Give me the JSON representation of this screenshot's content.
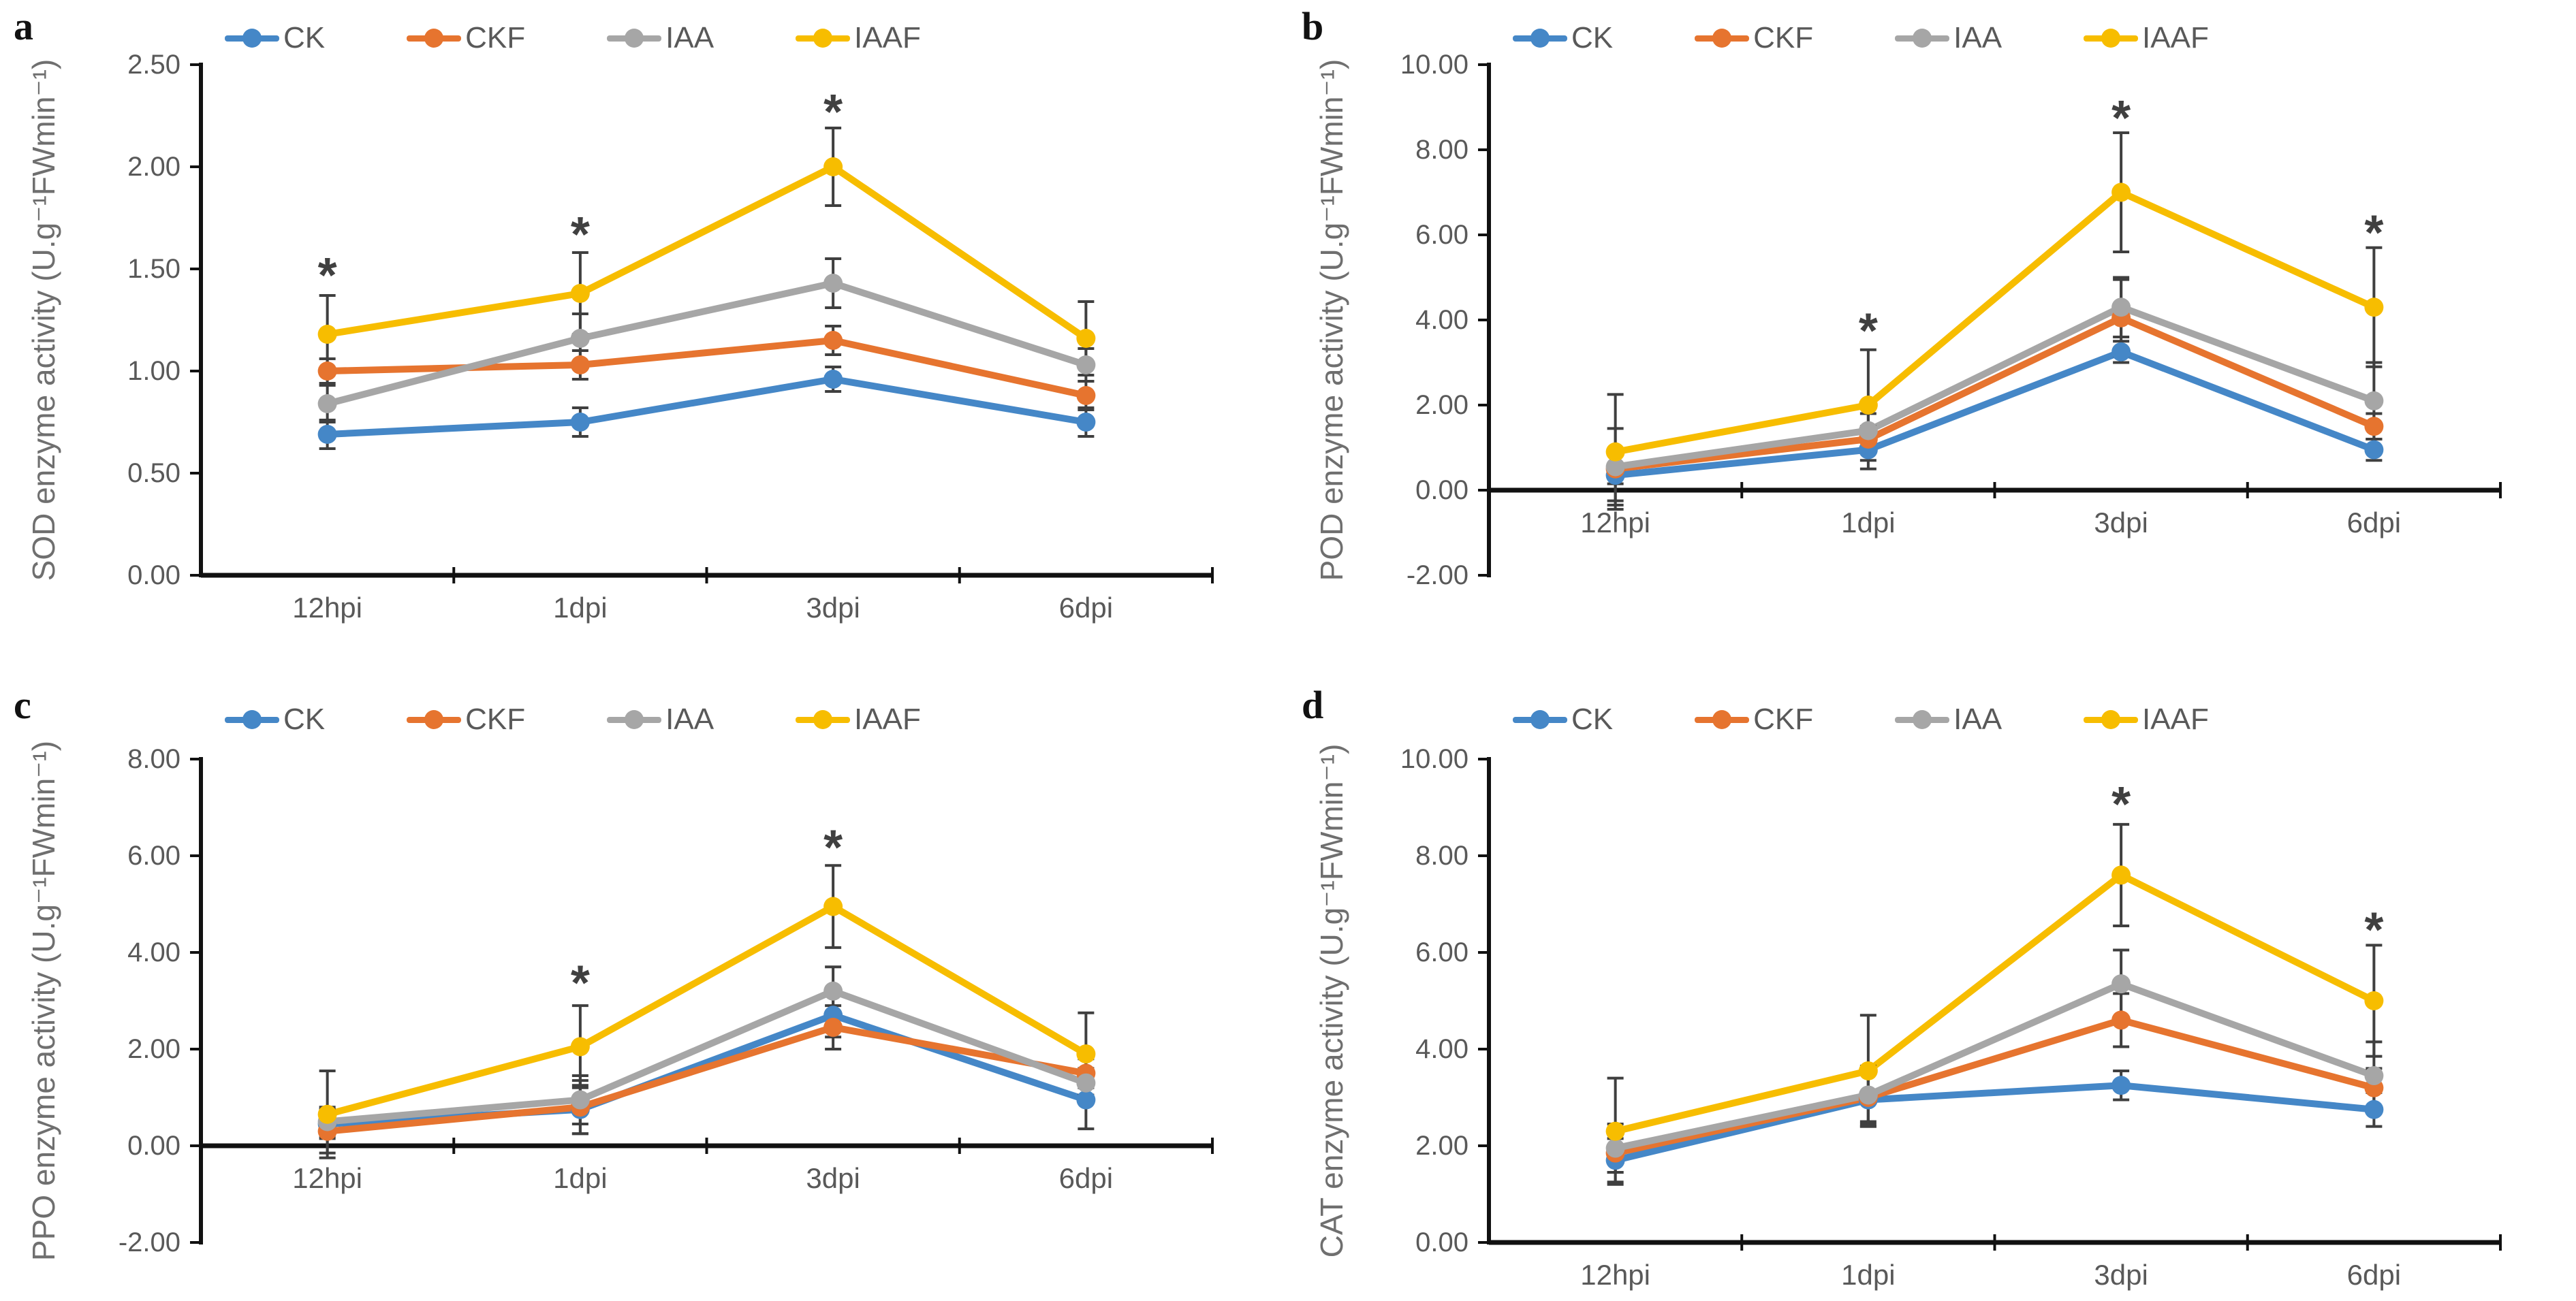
{
  "colors": {
    "background": "#ffffff",
    "axis": "#111111",
    "tick_text": "#595959",
    "axis_title_text": "#6f6f6f",
    "error_bar": "#3f3f3f",
    "asterisk": "#404040",
    "panel_letter": "#111111",
    "ck_blue": "#4587C7",
    "ckf_orange": "#E6742F",
    "iaa_gray": "#A6A6A6",
    "iaaf_yellow": "#F7BD00"
  },
  "chart_data": [
    {
      "type": "line",
      "letter": "a",
      "ylabel": "SOD enzyme activity",
      "unit": "(U.g⁻¹FWmin⁻¹)",
      "xlabel": "",
      "ylim": [
        0,
        2.5
      ],
      "ystep": 0.5,
      "tick_decimals": 2,
      "grid": false,
      "legend_position": "top",
      "categories": [
        "12hpi",
        "1dpi",
        "3dpi",
        "6dpi"
      ],
      "series": [
        {
          "name": "CK",
          "color": "#4587C7",
          "values": [
            0.69,
            0.75,
            0.96,
            0.75
          ],
          "errors": [
            0.07,
            0.07,
            0.06,
            0.07
          ]
        },
        {
          "name": "CKF",
          "color": "#E6742F",
          "values": [
            1.0,
            1.03,
            1.15,
            0.88
          ],
          "errors": [
            0.06,
            0.07,
            0.07,
            0.07
          ]
        },
        {
          "name": "IAA",
          "color": "#A6A6A6",
          "values": [
            0.84,
            1.16,
            1.43,
            1.03
          ],
          "errors": [
            0.09,
            0.12,
            0.12,
            0.08
          ]
        },
        {
          "name": "IAAF",
          "color": "#F7BD00",
          "values": [
            1.18,
            1.38,
            2.0,
            1.16
          ],
          "errors": [
            0.19,
            0.2,
            0.19,
            0.18
          ]
        }
      ],
      "significance": [
        {
          "x": 0,
          "y": 1.5,
          "text": "*"
        },
        {
          "x": 1,
          "y": 1.7,
          "text": "*"
        },
        {
          "x": 2,
          "y": 2.3,
          "text": "*"
        }
      ]
    },
    {
      "type": "line",
      "letter": "b",
      "ylabel": "POD enzyme activity",
      "unit": "(U.g⁻¹FWmin⁻¹)",
      "xlabel": "",
      "ylim": [
        -2,
        10
      ],
      "ystep": 2,
      "tick_decimals": 2,
      "grid": false,
      "legend_position": "top",
      "categories": [
        "12hpi",
        "1dpi",
        "3dpi",
        "6dpi"
      ],
      "series": [
        {
          "name": "CK",
          "color": "#4587C7",
          "values": [
            0.35,
            0.95,
            3.25,
            0.95
          ],
          "errors": [
            0.6,
            0.45,
            0.25,
            0.25
          ]
        },
        {
          "name": "CKF",
          "color": "#E6742F",
          "values": [
            0.5,
            1.2,
            4.05,
            1.5
          ],
          "errors": [
            0.35,
            0.3,
            0.9,
            0.3
          ]
        },
        {
          "name": "IAA",
          "color": "#A6A6A6",
          "values": [
            0.55,
            1.4,
            4.3,
            2.1
          ],
          "errors": [
            0.9,
            0.4,
            0.7,
            0.9
          ]
        },
        {
          "name": "IAAF",
          "color": "#F7BD00",
          "values": [
            0.9,
            2.0,
            7.0,
            4.3
          ],
          "errors": [
            1.35,
            1.3,
            1.4,
            1.4
          ]
        }
      ],
      "significance": [
        {
          "x": 1,
          "y": 3.9,
          "text": "*"
        },
        {
          "x": 2,
          "y": 8.9,
          "text": "*"
        },
        {
          "x": 3,
          "y": 6.2,
          "text": "*"
        }
      ]
    },
    {
      "type": "line",
      "letter": "c",
      "ylabel": "PPO enzyme activity",
      "unit": "(U.g⁻¹FWmin⁻¹)",
      "xlabel": "",
      "ylim": [
        -2,
        8
      ],
      "ystep": 2,
      "tick_decimals": 2,
      "grid": false,
      "legend_position": "top",
      "categories": [
        "12hpi",
        "1dpi",
        "3dpi",
        "6dpi"
      ],
      "series": [
        {
          "name": "CK",
          "color": "#4587C7",
          "values": [
            0.45,
            0.75,
            2.7,
            0.95
          ],
          "errors": [
            0.3,
            0.5,
            0.45,
            0.6
          ]
        },
        {
          "name": "CKF",
          "color": "#E6742F",
          "values": [
            0.3,
            0.8,
            2.45,
            1.5
          ],
          "errors": [
            0.45,
            0.55,
            0.45,
            0.3
          ]
        },
        {
          "name": "IAA",
          "color": "#A6A6A6",
          "values": [
            0.5,
            0.95,
            3.2,
            1.3
          ],
          "errors": [
            0.3,
            0.5,
            0.5,
            0.3
          ]
        },
        {
          "name": "IAAF",
          "color": "#F7BD00",
          "values": [
            0.65,
            2.05,
            4.95,
            1.9
          ],
          "errors": [
            0.9,
            0.85,
            0.85,
            0.85
          ]
        }
      ],
      "significance": [
        {
          "x": 1,
          "y": 3.5,
          "text": "*"
        },
        {
          "x": 2,
          "y": 6.3,
          "text": "*"
        }
      ]
    },
    {
      "type": "line",
      "letter": "d",
      "ylabel": "CAT enzyme activity",
      "unit": "(U.g⁻¹FWmin⁻¹)",
      "xlabel": "",
      "ylim": [
        0,
        10
      ],
      "ystep": 2,
      "tick_decimals": 2,
      "grid": false,
      "legend_position": "top",
      "categories": [
        "12hpi",
        "1dpi",
        "3dpi",
        "6dpi"
      ],
      "series": [
        {
          "name": "CK",
          "color": "#4587C7",
          "values": [
            1.7,
            2.95,
            3.25,
            2.75
          ],
          "errors": [
            0.45,
            0.55,
            0.3,
            0.35
          ]
        },
        {
          "name": "CKF",
          "color": "#E6742F",
          "values": [
            1.85,
            3.0,
            4.6,
            3.2
          ],
          "errors": [
            0.4,
            0.5,
            0.55,
            0.4
          ]
        },
        {
          "name": "IAA",
          "color": "#A6A6A6",
          "values": [
            1.95,
            3.05,
            5.35,
            3.45
          ],
          "errors": [
            0.5,
            0.6,
            0.7,
            0.7
          ]
        },
        {
          "name": "IAAF",
          "color": "#F7BD00",
          "values": [
            2.3,
            3.55,
            7.6,
            5.0
          ],
          "errors": [
            1.1,
            1.15,
            1.05,
            1.15
          ]
        }
      ],
      "significance": [
        {
          "x": 2,
          "y": 9.2,
          "text": "*"
        },
        {
          "x": 3,
          "y": 6.6,
          "text": "*"
        }
      ]
    }
  ]
}
